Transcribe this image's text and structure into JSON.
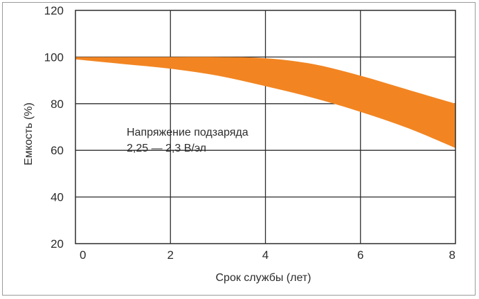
{
  "chart_data": {
    "type": "area",
    "title": "",
    "xlabel": "Срок службы (лет)",
    "ylabel": "Емкость (%)",
    "xlim": [
      0,
      8
    ],
    "ylim": [
      20,
      120
    ],
    "x_ticks": [
      "0",
      "2",
      "4",
      "6",
      "8"
    ],
    "y_ticks": [
      "20",
      "40",
      "60",
      "80",
      "100",
      "120"
    ],
    "grid": true,
    "series": [
      {
        "x": [
          0,
          1,
          2,
          3,
          4,
          5,
          6,
          7,
          8
        ],
        "upper": [
          100,
          100,
          100,
          100,
          99.5,
          97,
          92,
          86,
          80
        ],
        "lower": [
          99,
          97,
          95,
          92,
          87.5,
          82.5,
          76.5,
          69.5,
          61
        ]
      }
    ],
    "annotation": {
      "line1": "Напряжение подзаряда",
      "line2": "2,25 — 2,3 В/эл"
    },
    "colors": {
      "band": "#f28522",
      "grid": "#2b2b2b",
      "text": "#2b2b2b"
    }
  }
}
